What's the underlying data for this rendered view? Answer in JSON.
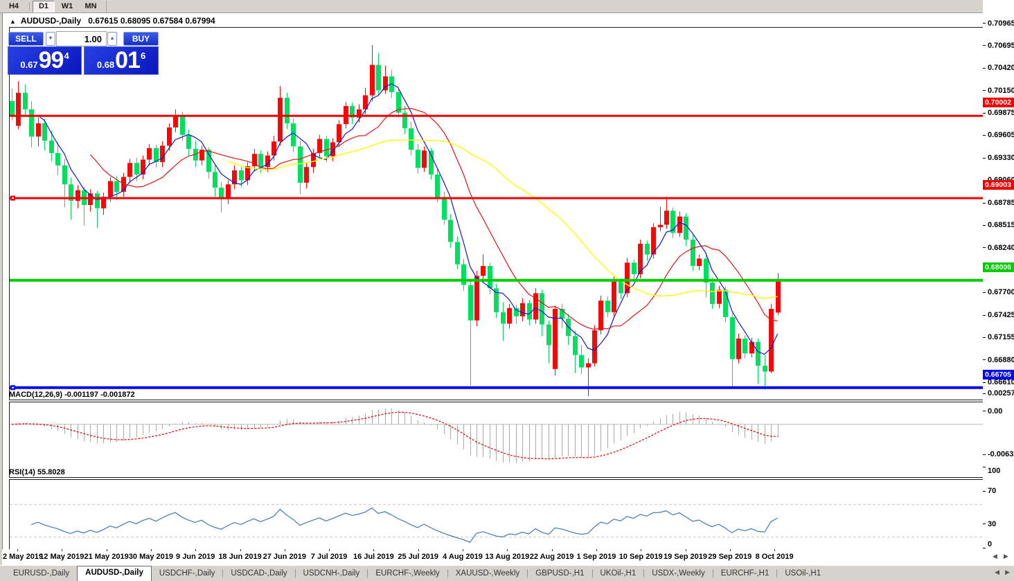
{
  "toolbar": {
    "timeframes": [
      {
        "label": "H4",
        "active": false
      },
      {
        "label": "D1",
        "active": true
      },
      {
        "label": "W1",
        "active": false
      },
      {
        "label": "MN",
        "active": false
      }
    ]
  },
  "icons": {
    "collapse_panel": "▲",
    "spinner_down": "▼",
    "spinner_up": "▲",
    "scroll_left": "◀",
    "scroll_right": "▶"
  },
  "chart": {
    "title_symbol": "AUDUSD-,Daily",
    "title_ohlc": "0.67615  0.68095  0.67584  0.67994"
  },
  "trade_panel": {
    "sell_label": "SELL",
    "buy_label": "BUY",
    "volume": "1.00",
    "sell_price": {
      "small": "0.67",
      "big": "99",
      "sup": "4"
    },
    "buy_price": {
      "small": "0.68",
      "big": "01",
      "sup": "6"
    }
  },
  "indicators": {
    "macd_label": "MACD(12,26,9) -0.001197 -0.001872",
    "rsi_label": "RSI(14) 55.8028"
  },
  "chart_data": {
    "type": "candlestick",
    "symbol": "AUDUSD-",
    "timeframe": "Daily",
    "last_bar": {
      "open": 0.67615,
      "high": 0.68095,
      "low": 0.67584,
      "close": 0.67994
    },
    "up_color": "#f50808",
    "down_color": "#00df60",
    "price_range": [
      0.6656,
      0.7107
    ],
    "grid": "off",
    "legend": "none",
    "y_ticks": [
      "0.70965",
      "0.70695",
      "0.70420",
      "0.70150",
      "0.69875",
      "0.69605",
      "0.69330",
      "0.69060",
      "0.68785",
      "0.68515",
      "0.68240",
      "0.67970",
      "0.67700",
      "0.67425",
      "0.67155",
      "0.66880",
      "0.66610"
    ],
    "x_labels": [
      "2 May 2019",
      "12 May 2019",
      "21 May 2019",
      "30 May 2019",
      "9 Jun 2019",
      "18 Jun 2019",
      "27 Jun 2019",
      "7 Jul 2019",
      "16 Jul 2019",
      "25 Jul 2019",
      "4 Aug 2019",
      "13 Aug 2019",
      "22 Aug 2019",
      "1 Sep 2019",
      "10 Sep 2019",
      "19 Sep 2019",
      "29 Sep 2019",
      "8 Oct 2019"
    ],
    "hlines": [
      {
        "price": 0.70002,
        "color": "#f40000",
        "thickness": 3,
        "badge": "0.70002",
        "handle": false
      },
      {
        "price": 0.69003,
        "color": "#f40000",
        "thickness": 3,
        "badge": "0.69003",
        "handle": true
      },
      {
        "price": 0.68006,
        "color": "#00cd00",
        "thickness": 4,
        "badge": "0.68006",
        "handle": false
      },
      {
        "price": 0.66705,
        "color": "#0505ef",
        "thickness": 4,
        "badge": "0.66705",
        "handle": true
      }
    ],
    "moving_averages": [
      {
        "period": 5,
        "color": "#1414cc"
      },
      {
        "period": 13,
        "color": "#e01414"
      },
      {
        "period": 34,
        "color": "#ffff00"
      }
    ],
    "macd": {
      "params": [
        12,
        26,
        9
      ],
      "value": -0.001197,
      "signal_value": -0.001872,
      "scale_top": 0.0032,
      "scale_bottom": -0.0077,
      "axis_labels": [
        "0.002574",
        "0.00",
        "-0.006326"
      ],
      "axis_values": [
        0.002574,
        0,
        -0.006326
      ],
      "bar_color": "#a9a9a9",
      "signal_color": "#dd0000"
    },
    "rsi": {
      "period": 14,
      "value": 55.8028,
      "levels": [
        70,
        30
      ],
      "axis_labels": [
        "100",
        "70",
        "30",
        "0"
      ],
      "axis_values": [
        100,
        70,
        30,
        0
      ],
      "line_color": "#4078b8"
    },
    "candles": [
      [
        0.7018,
        0.7033,
        0.6995,
        0.7001
      ],
      [
        0.6988,
        0.7042,
        0.6984,
        0.7028
      ],
      [
        0.7028,
        0.7038,
        0.7,
        0.7008
      ],
      [
        0.7008,
        0.7018,
        0.6962,
        0.6975
      ],
      [
        0.6975,
        0.6998,
        0.6963,
        0.6991
      ],
      [
        0.6991,
        0.6997,
        0.6958,
        0.697
      ],
      [
        0.697,
        0.6982,
        0.6945,
        0.6955
      ],
      [
        0.6955,
        0.6968,
        0.6928,
        0.694
      ],
      [
        0.694,
        0.6948,
        0.6889,
        0.6917
      ],
      [
        0.6917,
        0.6925,
        0.6874,
        0.6897
      ],
      [
        0.6897,
        0.6916,
        0.6888,
        0.691
      ],
      [
        0.691,
        0.6914,
        0.6867,
        0.6892
      ],
      [
        0.6892,
        0.6911,
        0.6884,
        0.6906
      ],
      [
        0.6906,
        0.6909,
        0.6864,
        0.6888
      ],
      [
        0.6888,
        0.6907,
        0.688,
        0.6902
      ],
      [
        0.6902,
        0.6926,
        0.6896,
        0.6921
      ],
      [
        0.6921,
        0.6927,
        0.6898,
        0.6908
      ],
      [
        0.6908,
        0.6931,
        0.6902,
        0.6926
      ],
      [
        0.6926,
        0.6948,
        0.6919,
        0.6943
      ],
      [
        0.6943,
        0.6949,
        0.6921,
        0.6929
      ],
      [
        0.6929,
        0.6952,
        0.6923,
        0.6947
      ],
      [
        0.6947,
        0.6966,
        0.694,
        0.6961
      ],
      [
        0.6961,
        0.6965,
        0.6937,
        0.6944
      ],
      [
        0.6944,
        0.6969,
        0.6938,
        0.6964
      ],
      [
        0.6964,
        0.6991,
        0.6958,
        0.6986
      ],
      [
        0.6986,
        0.7008,
        0.698,
        0.7001
      ],
      [
        0.7001,
        0.7005,
        0.697,
        0.6977
      ],
      [
        0.6977,
        0.6984,
        0.6952,
        0.696
      ],
      [
        0.696,
        0.697,
        0.6938,
        0.6946
      ],
      [
        0.6946,
        0.6964,
        0.694,
        0.6959
      ],
      [
        0.6959,
        0.6962,
        0.6924,
        0.6932
      ],
      [
        0.6932,
        0.694,
        0.6902,
        0.6913
      ],
      [
        0.6913,
        0.692,
        0.6883,
        0.6899
      ],
      [
        0.6899,
        0.6922,
        0.6893,
        0.6917
      ],
      [
        0.6917,
        0.694,
        0.6911,
        0.6934
      ],
      [
        0.6934,
        0.6938,
        0.6914,
        0.6922
      ],
      [
        0.6922,
        0.6944,
        0.6916,
        0.6939
      ],
      [
        0.6939,
        0.696,
        0.6933,
        0.6954
      ],
      [
        0.6954,
        0.6958,
        0.6931,
        0.6938
      ],
      [
        0.6938,
        0.6957,
        0.6932,
        0.6952
      ],
      [
        0.6952,
        0.6976,
        0.6946,
        0.6969
      ],
      [
        0.6969,
        0.7036,
        0.6964,
        0.7022
      ],
      [
        0.7022,
        0.7028,
        0.6984,
        0.6991
      ],
      [
        0.6991,
        0.6997,
        0.6956,
        0.6963
      ],
      [
        0.6963,
        0.697,
        0.6905,
        0.6919
      ],
      [
        0.6919,
        0.6943,
        0.6912,
        0.6938
      ],
      [
        0.6938,
        0.696,
        0.6931,
        0.6955
      ],
      [
        0.6955,
        0.6977,
        0.6949,
        0.6972
      ],
      [
        0.6972,
        0.6976,
        0.6944,
        0.6951
      ],
      [
        0.6951,
        0.6973,
        0.6945,
        0.6968
      ],
      [
        0.6968,
        0.6995,
        0.6962,
        0.699
      ],
      [
        0.699,
        0.7017,
        0.6985,
        0.7012
      ],
      [
        0.7012,
        0.7016,
        0.699,
        0.6998
      ],
      [
        0.6998,
        0.7014,
        0.6992,
        0.7008
      ],
      [
        0.7008,
        0.7034,
        0.7002,
        0.7025
      ],
      [
        0.7025,
        0.7086,
        0.7018,
        0.7062
      ],
      [
        0.7062,
        0.7076,
        0.7026,
        0.7031
      ],
      [
        0.7031,
        0.7061,
        0.7027,
        0.7048
      ],
      [
        0.7048,
        0.7056,
        0.7022,
        0.7029
      ],
      [
        0.7029,
        0.7034,
        0.6998,
        0.7004
      ],
      [
        0.7004,
        0.7012,
        0.6978,
        0.6985
      ],
      [
        0.6985,
        0.6993,
        0.6952,
        0.6959
      ],
      [
        0.6959,
        0.6966,
        0.693,
        0.6937
      ],
      [
        0.6937,
        0.6963,
        0.6932,
        0.6958
      ],
      [
        0.6958,
        0.6961,
        0.6923,
        0.6929
      ],
      [
        0.6929,
        0.6936,
        0.6895,
        0.6901
      ],
      [
        0.6901,
        0.6908,
        0.6868,
        0.6874
      ],
      [
        0.6874,
        0.6881,
        0.684,
        0.6847
      ],
      [
        0.6847,
        0.6854,
        0.6814,
        0.682
      ],
      [
        0.682,
        0.6827,
        0.6788,
        0.6795
      ],
      [
        0.6795,
        0.6801,
        0.6673,
        0.6752
      ],
      [
        0.6752,
        0.6812,
        0.6745,
        0.6806
      ],
      [
        0.6806,
        0.6832,
        0.6798,
        0.6818
      ],
      [
        0.6818,
        0.6822,
        0.6784,
        0.6791
      ],
      [
        0.6791,
        0.6796,
        0.6755,
        0.6762
      ],
      [
        0.6762,
        0.6774,
        0.6727,
        0.6748
      ],
      [
        0.6748,
        0.6772,
        0.6742,
        0.6767
      ],
      [
        0.6767,
        0.6771,
        0.6748,
        0.6757
      ],
      [
        0.6757,
        0.6779,
        0.6751,
        0.6773
      ],
      [
        0.6773,
        0.6777,
        0.6746,
        0.6753
      ],
      [
        0.6753,
        0.6791,
        0.6748,
        0.6785
      ],
      [
        0.6785,
        0.6789,
        0.6733,
        0.6747
      ],
      [
        0.6747,
        0.6752,
        0.67,
        0.6722
      ],
      [
        0.6693,
        0.677,
        0.6685,
        0.6766
      ],
      [
        0.6766,
        0.6772,
        0.6742,
        0.6754
      ],
      [
        0.6754,
        0.676,
        0.6722,
        0.6733
      ],
      [
        0.6733,
        0.6739,
        0.6688,
        0.671
      ],
      [
        0.671,
        0.6722,
        0.6687,
        0.6695
      ],
      [
        0.6695,
        0.6706,
        0.666,
        0.67
      ],
      [
        0.67,
        0.6746,
        0.6696,
        0.674
      ],
      [
        0.674,
        0.6782,
        0.6735,
        0.6776
      ],
      [
        0.6776,
        0.6781,
        0.6756,
        0.6762
      ],
      [
        0.6762,
        0.6805,
        0.6757,
        0.6799
      ],
      [
        0.6799,
        0.6803,
        0.6778,
        0.6785
      ],
      [
        0.6785,
        0.6828,
        0.678,
        0.6822
      ],
      [
        0.6822,
        0.6826,
        0.68,
        0.6808
      ],
      [
        0.6808,
        0.685,
        0.6803,
        0.6845
      ],
      [
        0.6845,
        0.6849,
        0.6824,
        0.6832
      ],
      [
        0.6832,
        0.687,
        0.6827,
        0.6865
      ],
      [
        0.6865,
        0.689,
        0.686,
        0.6868
      ],
      [
        0.6868,
        0.6902,
        0.6863,
        0.6885
      ],
      [
        0.6885,
        0.6889,
        0.6852,
        0.6858
      ],
      [
        0.6858,
        0.6884,
        0.6853,
        0.6878
      ],
      [
        0.6878,
        0.6882,
        0.6842,
        0.685
      ],
      [
        0.685,
        0.6856,
        0.6812,
        0.6818
      ],
      [
        0.6818,
        0.6832,
        0.6813,
        0.6827
      ],
      [
        0.6827,
        0.6831,
        0.678,
        0.6798
      ],
      [
        0.6798,
        0.6804,
        0.6766,
        0.6772
      ],
      [
        0.6772,
        0.6794,
        0.6767,
        0.6789
      ],
      [
        0.6789,
        0.6793,
        0.675,
        0.6756
      ],
      [
        0.6756,
        0.6761,
        0.667,
        0.6705
      ],
      [
        0.6705,
        0.6736,
        0.67,
        0.673
      ],
      [
        0.673,
        0.6734,
        0.6706,
        0.6712
      ],
      [
        0.6712,
        0.6731,
        0.6707,
        0.6726
      ],
      [
        0.6726,
        0.673,
        0.6675,
        0.6697
      ],
      [
        0.6697,
        0.671,
        0.6668,
        0.669
      ],
      [
        0.669,
        0.6772,
        0.6688,
        0.6766
      ],
      [
        0.67615,
        0.68095,
        0.67584,
        0.67994
      ]
    ]
  },
  "tabbar": {
    "tabs": [
      {
        "label": "EURUSD-,Daily",
        "active": false
      },
      {
        "label": "AUDUSD-,Daily",
        "active": true
      },
      {
        "label": "USDCHF-,Daily",
        "active": false
      },
      {
        "label": "USDCAD-,Daily",
        "active": false
      },
      {
        "label": "USDCNH-,Daily",
        "active": false
      },
      {
        "label": "EURCHF-,Weekly",
        "active": false
      },
      {
        "label": "XAUUSD-,Weekly",
        "active": false
      },
      {
        "label": "GBPUSD-,H1",
        "active": false
      },
      {
        "label": "UKOil-,H1",
        "active": false
      },
      {
        "label": "USDX-,Weekly",
        "active": false
      },
      {
        "label": "EURCHF-,H1",
        "active": false
      },
      {
        "label": "USOil-,H1",
        "active": false
      }
    ]
  }
}
